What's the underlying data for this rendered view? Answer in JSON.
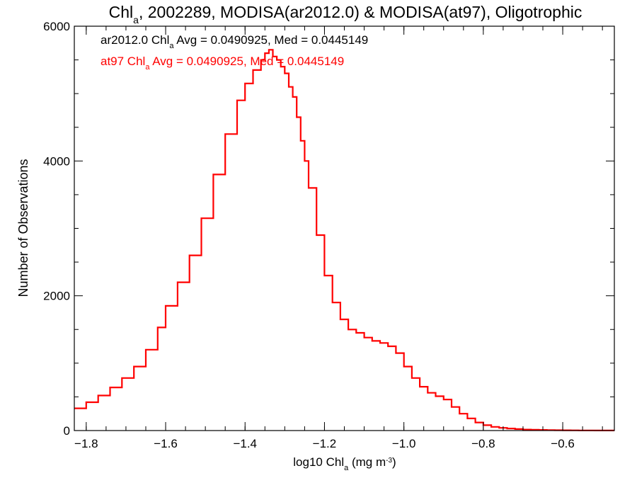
{
  "chart_data": {
    "type": "line",
    "title_pre": "Chl",
    "title_sub": "a",
    "title_post": ", 2002289, MODISA(ar2012.0) & MODISA(at97), Oligotrophic",
    "xlabel_pre": "log10 Chl",
    "xlabel_sub": "a",
    "xlabel_mid": " (mg m",
    "xlabel_sup": "-3",
    "xlabel_post": ")",
    "ylabel": "Number of Observations",
    "xlim": [
      -1.83,
      -0.47
    ],
    "ylim": [
      0,
      6000
    ],
    "x_ticks": [
      -1.8,
      -1.6,
      -1.4,
      -1.2,
      -1.0,
      -0.8,
      -0.6
    ],
    "x_tick_labels": [
      "−1.8",
      "−1.6",
      "−1.4",
      "−1.2",
      "−1.0",
      "−0.8",
      "−0.6"
    ],
    "y_ticks": [
      0,
      2000,
      4000,
      6000
    ],
    "y_tick_labels": [
      "0",
      "2000",
      "4000",
      "6000"
    ],
    "grid": false,
    "annotations": [
      {
        "pre": "ar2012.0 Chl",
        "sub": "a",
        "post": " Avg = 0.0490925, Med = 0.0445149",
        "color": "#000000"
      },
      {
        "pre": "at97 Chl",
        "sub": "a",
        "post": " Avg = 0.0490925, Med = 0.0445149",
        "color": "#ff0000"
      }
    ],
    "series": [
      {
        "style": "step",
        "color": "#ff0000",
        "x": [
          -1.83,
          -1.8,
          -1.77,
          -1.74,
          -1.71,
          -1.68,
          -1.65,
          -1.62,
          -1.6,
          -1.57,
          -1.54,
          -1.51,
          -1.48,
          -1.45,
          -1.42,
          -1.4,
          -1.38,
          -1.36,
          -1.35,
          -1.34,
          -1.33,
          -1.32,
          -1.31,
          -1.3,
          -1.29,
          -1.28,
          -1.27,
          -1.26,
          -1.25,
          -1.24,
          -1.22,
          -1.2,
          -1.18,
          -1.16,
          -1.14,
          -1.12,
          -1.1,
          -1.08,
          -1.06,
          -1.04,
          -1.02,
          -1.0,
          -0.98,
          -0.96,
          -0.94,
          -0.92,
          -0.9,
          -0.88,
          -0.86,
          -0.84,
          -0.82,
          -0.8,
          -0.78,
          -0.76,
          -0.74,
          -0.72,
          -0.7,
          -0.68,
          -0.66,
          -0.64,
          -0.62,
          -0.6,
          -0.58,
          -0.56,
          -0.54,
          -0.52,
          -0.5,
          -0.48
        ],
        "y": [
          330,
          420,
          520,
          640,
          780,
          950,
          1200,
          1530,
          1850,
          2200,
          2600,
          3150,
          3800,
          4400,
          4900,
          5150,
          5350,
          5500,
          5600,
          5650,
          5550,
          5500,
          5400,
          5300,
          5100,
          4950,
          4650,
          4300,
          4000,
          3600,
          2900,
          2300,
          1900,
          1650,
          1500,
          1450,
          1380,
          1330,
          1300,
          1250,
          1150,
          950,
          780,
          650,
          560,
          510,
          460,
          350,
          250,
          180,
          120,
          80,
          55,
          40,
          30,
          22,
          15,
          12,
          9,
          7,
          5,
          4,
          3,
          2,
          2,
          1,
          1,
          1
        ]
      }
    ]
  }
}
